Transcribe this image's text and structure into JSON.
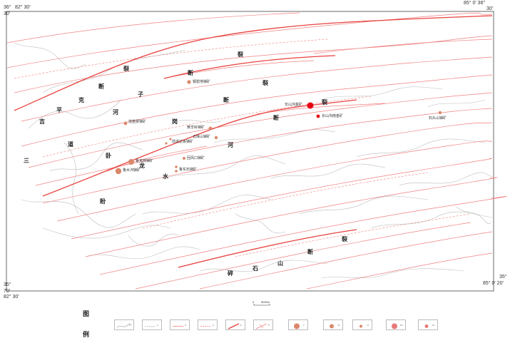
{
  "coords": {
    "top_left_lat": "36°",
    "top_left_lon": "82° 30′",
    "top_left_min": "30′",
    "top_right_lon": "85° 0′ 36″",
    "top_right_min": "30′",
    "bottom_left_lat": "35°",
    "bottom_left_min": "70′",
    "bottom_left_lon": "82° 30′",
    "bottom_right_lat": "35°",
    "bottom_right_lon": "85° 0′ 20′"
  },
  "fault_labels": {
    "lie1": "裂",
    "duan1": "断",
    "zi": "子",
    "he1": "河",
    "ping": "平",
    "ke": "克",
    "ji": "吉",
    "dao": "道",
    "san": "三",
    "lie2": "裂",
    "duan2": "断",
    "gang": "岗",
    "wo": "卧",
    "long": "龙",
    "shui": "水",
    "he2": "河",
    "lie3": "裂",
    "duan3": "断",
    "duan4": "断",
    "lie4": "裂",
    "lie5": "裂",
    "pan": "盼",
    "sui": "碎",
    "shi": "石",
    "shan": "山",
    "duan5": "断",
    "lie6": "裂",
    "lie7": "裂"
  },
  "mines": [
    {
      "name": "银碧地锑矿",
      "color": "#d9896a"
    },
    {
      "name": "长山沟金矿",
      "color": "#e60012"
    },
    {
      "name": "长山沟南金矿",
      "color": "#e60012"
    },
    {
      "name": "石头山锑矿",
      "color": "#d9896a"
    },
    {
      "name": "茂苗梁锑矿",
      "color": "#d9896a"
    },
    {
      "name": "黄羊岭锑矿",
      "color": "#d9896a"
    },
    {
      "name": "云珠山锑矿",
      "color": "#d9896a"
    },
    {
      "name": "前进达坂锑矿",
      "color": "#d9896a"
    },
    {
      "name": "回风口锑矿",
      "color": "#d9896a"
    },
    {
      "name": "鲁克岗锑矿",
      "color": "#d9896a"
    },
    {
      "name": "鲁水河锑矿",
      "color": "#d9896a"
    },
    {
      "name": "鲁东石锑矿",
      "color": "#d9896a"
    }
  ],
  "scale": {
    "zero": "0",
    "length": "5000m"
  },
  "legend": {
    "title_1": "图",
    "title_2": "例",
    "items": [
      "1",
      "2",
      "3",
      "4",
      "5",
      "6",
      "7",
      "8",
      "9",
      "10",
      "11"
    ]
  },
  "colors": {
    "fault": "#f08080",
    "fault_major": "#e8423e",
    "geology": "#b8b8b8",
    "gold": "#e60012",
    "antimony": "#d9896a",
    "frame": "#444444"
  }
}
